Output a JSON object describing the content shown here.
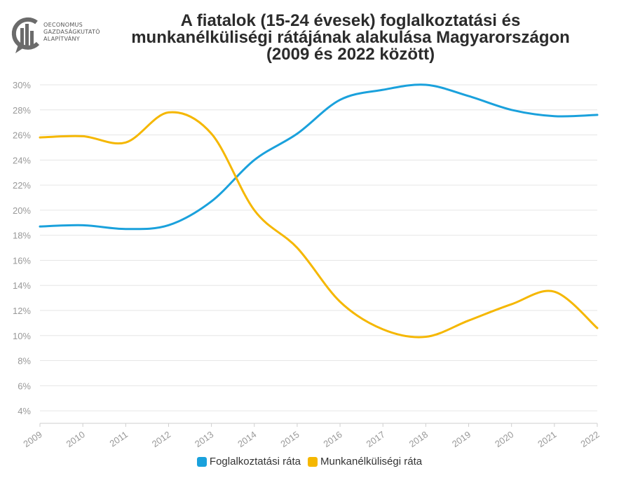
{
  "logo": {
    "lines": "OECONOMUS\nGAZDASÁGKUTATÓ\nALAPÍTVÁNY"
  },
  "title_lines": [
    "A fiatalok (15-24 évesek) foglalkoztatási és",
    "munkanélküliségi rátájának alakulása Magyarországon",
    "(2009 és 2022 között)"
  ],
  "chart_data": {
    "type": "line",
    "title": "A fiatalok (15-24 évesek) foglalkoztatási és munkanélküliségi rátájának alakulása Magyarországon (2009 és 2022 között)",
    "x": [
      "2009",
      "2010",
      "2011",
      "2012",
      "2013",
      "2014",
      "2015",
      "2016",
      "2017",
      "2018",
      "2019",
      "2020",
      "2021",
      "2022"
    ],
    "ylim": [
      3,
      30
    ],
    "yticks": [
      4,
      6,
      8,
      10,
      12,
      14,
      16,
      18,
      20,
      22,
      24,
      26,
      28,
      30
    ],
    "ytick_labels": [
      "4%",
      "6%",
      "8%",
      "10%",
      "12%",
      "14%",
      "16%",
      "18%",
      "20%",
      "22%",
      "24%",
      "26%",
      "28%",
      "30%"
    ],
    "grid": true,
    "legend_position": "bottom",
    "series": [
      {
        "name": "Foglalkoztatási ráta",
        "color": "#1aa1dc",
        "values": [
          18.7,
          18.8,
          18.5,
          18.8,
          20.7,
          24.0,
          26.1,
          28.8,
          29.6,
          30.0,
          29.1,
          28.0,
          27.5,
          27.6
        ]
      },
      {
        "name": "Munkanélküliségi ráta",
        "color": "#f5b700",
        "values": [
          25.8,
          25.9,
          25.4,
          27.8,
          26.1,
          20.0,
          17.0,
          12.7,
          10.5,
          9.9,
          11.2,
          12.5,
          13.5,
          10.6
        ]
      }
    ]
  }
}
